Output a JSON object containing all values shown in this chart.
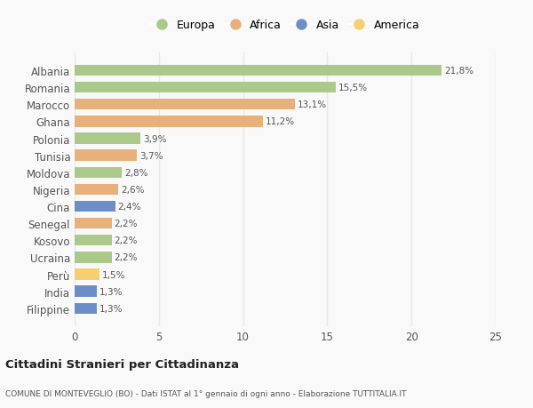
{
  "countries": [
    "Albania",
    "Romania",
    "Marocco",
    "Ghana",
    "Polonia",
    "Tunisia",
    "Moldova",
    "Nigeria",
    "Cina",
    "Senegal",
    "Kosovo",
    "Ucraina",
    "Perù",
    "India",
    "Filippine"
  ],
  "values": [
    21.8,
    15.5,
    13.1,
    11.2,
    3.9,
    3.7,
    2.8,
    2.6,
    2.4,
    2.2,
    2.2,
    2.2,
    1.5,
    1.3,
    1.3
  ],
  "labels": [
    "21,8%",
    "15,5%",
    "13,1%",
    "11,2%",
    "3,9%",
    "3,7%",
    "2,8%",
    "2,6%",
    "2,4%",
    "2,2%",
    "2,2%",
    "2,2%",
    "1,5%",
    "1,3%",
    "1,3%"
  ],
  "continents": [
    "Europa",
    "Europa",
    "Africa",
    "Africa",
    "Europa",
    "Africa",
    "Europa",
    "Africa",
    "Asia",
    "Africa",
    "Europa",
    "Europa",
    "America",
    "Asia",
    "Asia"
  ],
  "colors": {
    "Europa": "#aac98b",
    "Africa": "#e8b07a",
    "Asia": "#6b8ec9",
    "America": "#f5d06e"
  },
  "legend_order": [
    "Europa",
    "Africa",
    "Asia",
    "America"
  ],
  "title": "Cittadini Stranieri per Cittadinanza",
  "subtitle": "COMUNE DI MONTEVEGLIO (BO) - Dati ISTAT al 1° gennaio di ogni anno - Elaborazione TUTTITALIA.IT",
  "xlim": [
    0,
    25
  ],
  "xticks": [
    0,
    5,
    10,
    15,
    20,
    25
  ],
  "background_color": "#f9f9f9",
  "grid_color": "#e8e8e8",
  "bar_height": 0.65,
  "figwidth": 6.0,
  "figheight": 4.6,
  "dpi": 100
}
